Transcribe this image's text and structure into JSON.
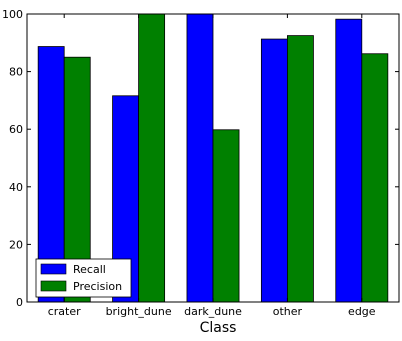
{
  "chart_data": {
    "type": "bar",
    "title": "",
    "xlabel": "Class",
    "ylabel": "",
    "ylim": [
      0,
      100
    ],
    "yticks": [
      0,
      20,
      40,
      60,
      80,
      100
    ],
    "categories": [
      "crater",
      "bright_dune",
      "dark_dune",
      "other",
      "edge"
    ],
    "series": [
      {
        "name": "Recall",
        "color": "#0000ff",
        "values": [
          88.7,
          71.6,
          100,
          91.3,
          98.2
        ]
      },
      {
        "name": "Precision",
        "color": "#008000",
        "values": [
          85.0,
          100,
          59.8,
          92.5,
          86.2
        ]
      }
    ],
    "grid": false,
    "legend_position": "lower-left"
  }
}
